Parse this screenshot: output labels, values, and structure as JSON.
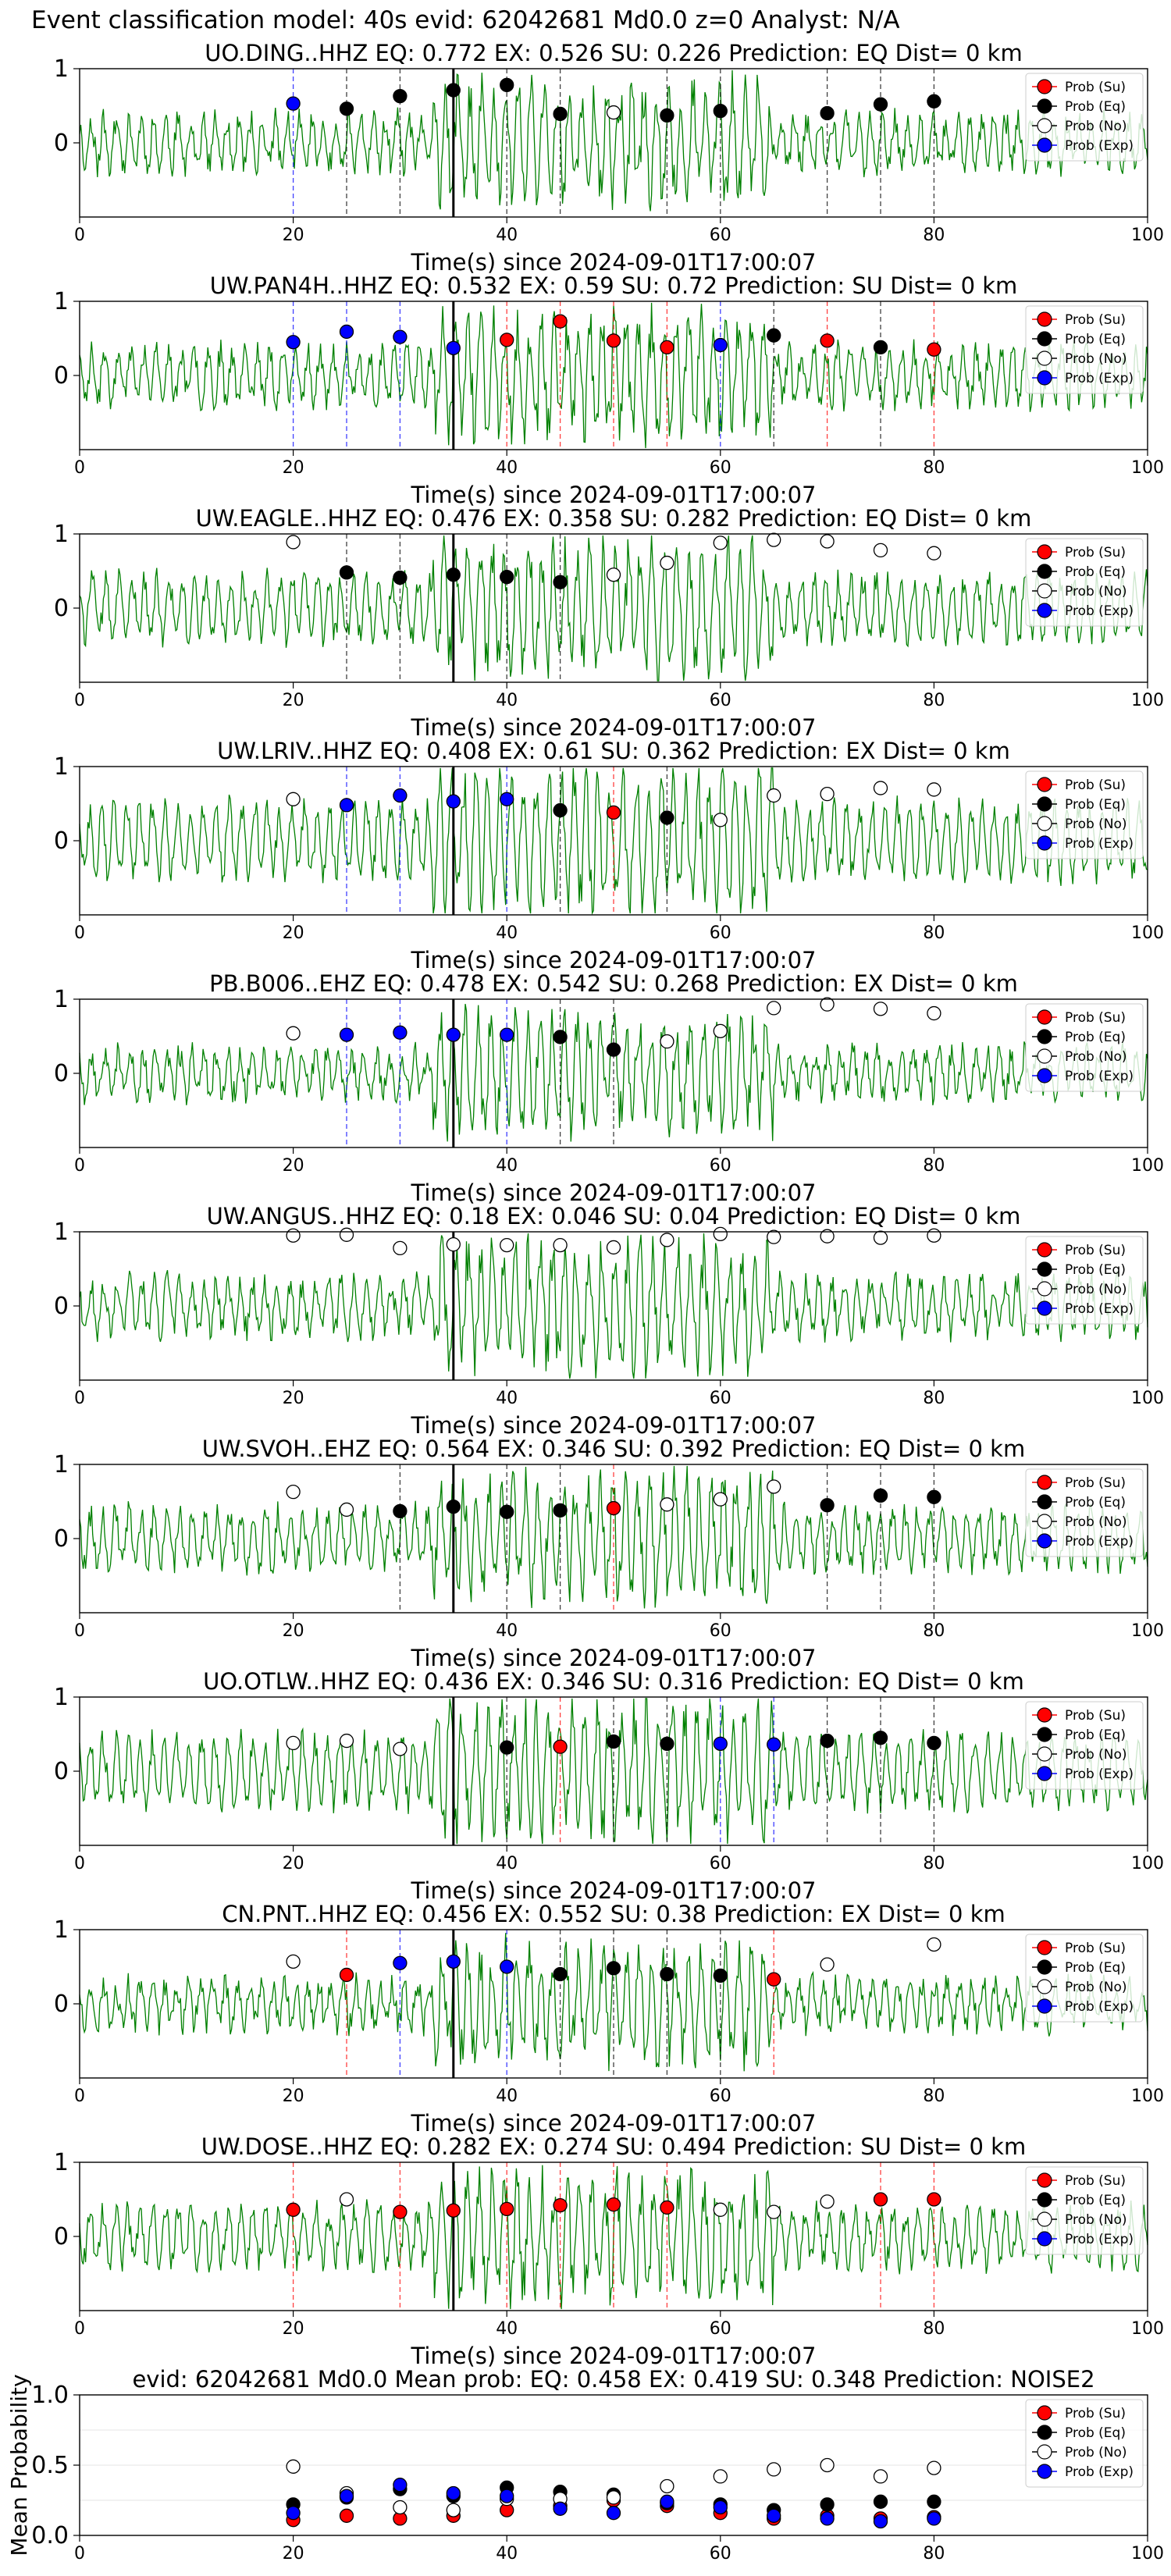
{
  "figure_title": "Event classification model: 40s evid: 62042681 Md0.0 z=0 Analyst: N/A",
  "legend_labels": [
    "Prob (Su)",
    "Prob (Eq)",
    "Prob (No)",
    "Prob (Exp)"
  ],
  "colors": {
    "su": "#ff0000",
    "eq": "#000000",
    "no": "#ffffff",
    "exp": "#0000ff",
    "waveform": "#008000"
  },
  "chart_data": [
    {
      "type": "scatter",
      "title": "UO.DING..HHZ   EQ: 0.772   EX: 0.526   SU: 0.226   Prediction: EQ    Dist= 0 km",
      "xlabel": "Time(s) since 2024-09-01T17:00:07",
      "ylabel": "",
      "xlim": [
        0,
        100
      ],
      "ylim": [
        -1,
        1
      ],
      "xticks": [
        0,
        20,
        40,
        60,
        80,
        100
      ],
      "yticks": [
        0,
        1
      ],
      "pick_time": 35,
      "waveform_seed": 11,
      "points": [
        {
          "x": 20,
          "y": 0.53,
          "cls": "exp"
        },
        {
          "x": 25,
          "y": 0.46,
          "cls": "eq"
        },
        {
          "x": 30,
          "y": 0.63,
          "cls": "eq"
        },
        {
          "x": 35,
          "y": 0.71,
          "cls": "eq"
        },
        {
          "x": 40,
          "y": 0.78,
          "cls": "eq"
        },
        {
          "x": 45,
          "y": 0.39,
          "cls": "eq"
        },
        {
          "x": 50,
          "y": 0.41,
          "cls": "no"
        },
        {
          "x": 55,
          "y": 0.37,
          "cls": "eq"
        },
        {
          "x": 60,
          "y": 0.43,
          "cls": "eq"
        },
        {
          "x": 70,
          "y": 0.4,
          "cls": "eq"
        },
        {
          "x": 75,
          "y": 0.52,
          "cls": "eq"
        },
        {
          "x": 80,
          "y": 0.56,
          "cls": "eq"
        }
      ]
    },
    {
      "type": "scatter",
      "title": "UW.PAN4H..HHZ   EQ: 0.532   EX: 0.59   SU: 0.72   Prediction: SU    Dist= 0 km",
      "xlabel": "Time(s) since 2024-09-01T17:00:07",
      "ylabel": "",
      "xlim": [
        0,
        100
      ],
      "ylim": [
        -1,
        1
      ],
      "xticks": [
        0,
        20,
        40,
        60,
        80,
        100
      ],
      "yticks": [
        0,
        1
      ],
      "pick_time": 35,
      "waveform_seed": 23,
      "points": [
        {
          "x": 20,
          "y": 0.45,
          "cls": "exp"
        },
        {
          "x": 25,
          "y": 0.59,
          "cls": "exp"
        },
        {
          "x": 30,
          "y": 0.52,
          "cls": "exp"
        },
        {
          "x": 35,
          "y": 0.37,
          "cls": "exp"
        },
        {
          "x": 40,
          "y": 0.48,
          "cls": "su"
        },
        {
          "x": 45,
          "y": 0.73,
          "cls": "su"
        },
        {
          "x": 50,
          "y": 0.47,
          "cls": "su"
        },
        {
          "x": 55,
          "y": 0.38,
          "cls": "su"
        },
        {
          "x": 60,
          "y": 0.41,
          "cls": "exp"
        },
        {
          "x": 65,
          "y": 0.54,
          "cls": "eq"
        },
        {
          "x": 70,
          "y": 0.47,
          "cls": "su"
        },
        {
          "x": 75,
          "y": 0.38,
          "cls": "eq"
        },
        {
          "x": 80,
          "y": 0.35,
          "cls": "su"
        }
      ]
    },
    {
      "type": "scatter",
      "title": "UW.EAGLE..HHZ   EQ: 0.476   EX: 0.358   SU: 0.282   Prediction: EQ    Dist= 0 km",
      "xlabel": "Time(s) since 2024-09-01T17:00:07",
      "ylabel": "",
      "xlim": [
        0,
        100
      ],
      "ylim": [
        -1,
        1
      ],
      "xticks": [
        0,
        20,
        40,
        60,
        80,
        100
      ],
      "yticks": [
        0,
        1
      ],
      "pick_time": 35,
      "waveform_seed": 37,
      "points": [
        {
          "x": 20,
          "y": 0.89,
          "cls": "no"
        },
        {
          "x": 25,
          "y": 0.48,
          "cls": "eq"
        },
        {
          "x": 30,
          "y": 0.41,
          "cls": "eq"
        },
        {
          "x": 35,
          "y": 0.45,
          "cls": "eq"
        },
        {
          "x": 40,
          "y": 0.42,
          "cls": "eq"
        },
        {
          "x": 45,
          "y": 0.35,
          "cls": "eq"
        },
        {
          "x": 50,
          "y": 0.45,
          "cls": "no"
        },
        {
          "x": 55,
          "y": 0.61,
          "cls": "no"
        },
        {
          "x": 60,
          "y": 0.88,
          "cls": "no"
        },
        {
          "x": 65,
          "y": 0.92,
          "cls": "no"
        },
        {
          "x": 70,
          "y": 0.9,
          "cls": "no"
        },
        {
          "x": 75,
          "y": 0.78,
          "cls": "no"
        },
        {
          "x": 80,
          "y": 0.74,
          "cls": "no"
        }
      ]
    },
    {
      "type": "scatter",
      "title": "UW.LRIV..HHZ   EQ: 0.408   EX: 0.61   SU: 0.362   Prediction: EX    Dist= 0 km",
      "xlabel": "Time(s) since 2024-09-01T17:00:07",
      "ylabel": "",
      "xlim": [
        0,
        100
      ],
      "ylim": [
        -1,
        1
      ],
      "xticks": [
        0,
        20,
        40,
        60,
        80,
        100
      ],
      "yticks": [
        0,
        1
      ],
      "pick_time": 35,
      "waveform_seed": 41,
      "points": [
        {
          "x": 20,
          "y": 0.56,
          "cls": "no"
        },
        {
          "x": 25,
          "y": 0.48,
          "cls": "exp"
        },
        {
          "x": 30,
          "y": 0.61,
          "cls": "exp"
        },
        {
          "x": 35,
          "y": 0.53,
          "cls": "exp"
        },
        {
          "x": 40,
          "y": 0.56,
          "cls": "exp"
        },
        {
          "x": 45,
          "y": 0.41,
          "cls": "eq"
        },
        {
          "x": 50,
          "y": 0.38,
          "cls": "su"
        },
        {
          "x": 55,
          "y": 0.31,
          "cls": "eq"
        },
        {
          "x": 60,
          "y": 0.28,
          "cls": "no"
        },
        {
          "x": 65,
          "y": 0.61,
          "cls": "no"
        },
        {
          "x": 70,
          "y": 0.63,
          "cls": "no"
        },
        {
          "x": 75,
          "y": 0.71,
          "cls": "no"
        },
        {
          "x": 80,
          "y": 0.69,
          "cls": "no"
        }
      ]
    },
    {
      "type": "scatter",
      "title": "PB.B006..EHZ   EQ: 0.478   EX: 0.542   SU: 0.268   Prediction: EX    Dist= 0 km",
      "xlabel": "Time(s) since 2024-09-01T17:00:07",
      "ylabel": "",
      "xlim": [
        0,
        100
      ],
      "ylim": [
        -1,
        1
      ],
      "xticks": [
        0,
        20,
        40,
        60,
        80,
        100
      ],
      "yticks": [
        0,
        1
      ],
      "pick_time": 35,
      "waveform_seed": 53,
      "points": [
        {
          "x": 20,
          "y": 0.54,
          "cls": "no"
        },
        {
          "x": 25,
          "y": 0.52,
          "cls": "exp"
        },
        {
          "x": 30,
          "y": 0.55,
          "cls": "exp"
        },
        {
          "x": 35,
          "y": 0.52,
          "cls": "exp"
        },
        {
          "x": 40,
          "y": 0.52,
          "cls": "exp"
        },
        {
          "x": 45,
          "y": 0.49,
          "cls": "eq"
        },
        {
          "x": 50,
          "y": 0.32,
          "cls": "eq"
        },
        {
          "x": 55,
          "y": 0.43,
          "cls": "no"
        },
        {
          "x": 60,
          "y": 0.57,
          "cls": "no"
        },
        {
          "x": 65,
          "y": 0.88,
          "cls": "no"
        },
        {
          "x": 70,
          "y": 0.93,
          "cls": "no"
        },
        {
          "x": 75,
          "y": 0.87,
          "cls": "no"
        },
        {
          "x": 80,
          "y": 0.81,
          "cls": "no"
        }
      ]
    },
    {
      "type": "scatter",
      "title": "UW.ANGUS..HHZ   EQ: 0.18   EX: 0.046   SU: 0.04   Prediction: EQ    Dist= 0 km",
      "xlabel": "Time(s) since 2024-09-01T17:00:07",
      "ylabel": "",
      "xlim": [
        0,
        100
      ],
      "ylim": [
        -1,
        1
      ],
      "xticks": [
        0,
        20,
        40,
        60,
        80,
        100
      ],
      "yticks": [
        0,
        1
      ],
      "pick_time": 35,
      "waveform_seed": 67,
      "points": [
        {
          "x": 20,
          "y": 0.95,
          "cls": "no"
        },
        {
          "x": 25,
          "y": 0.96,
          "cls": "no"
        },
        {
          "x": 30,
          "y": 0.78,
          "cls": "no"
        },
        {
          "x": 35,
          "y": 0.83,
          "cls": "no"
        },
        {
          "x": 40,
          "y": 0.82,
          "cls": "no"
        },
        {
          "x": 45,
          "y": 0.82,
          "cls": "no"
        },
        {
          "x": 50,
          "y": 0.79,
          "cls": "no"
        },
        {
          "x": 55,
          "y": 0.89,
          "cls": "no"
        },
        {
          "x": 60,
          "y": 0.97,
          "cls": "no"
        },
        {
          "x": 65,
          "y": 0.93,
          "cls": "no"
        },
        {
          "x": 70,
          "y": 0.94,
          "cls": "no"
        },
        {
          "x": 75,
          "y": 0.92,
          "cls": "no"
        },
        {
          "x": 80,
          "y": 0.95,
          "cls": "no"
        }
      ]
    },
    {
      "type": "scatter",
      "title": "UW.SVOH..EHZ   EQ: 0.564   EX: 0.346   SU: 0.392   Prediction: EQ    Dist= 0 km",
      "xlabel": "Time(s) since 2024-09-01T17:00:07",
      "ylabel": "",
      "xlim": [
        0,
        100
      ],
      "ylim": [
        -1,
        1
      ],
      "xticks": [
        0,
        20,
        40,
        60,
        80,
        100
      ],
      "yticks": [
        0,
        1
      ],
      "pick_time": 35,
      "waveform_seed": 79,
      "points": [
        {
          "x": 20,
          "y": 0.63,
          "cls": "no"
        },
        {
          "x": 25,
          "y": 0.39,
          "cls": "no"
        },
        {
          "x": 30,
          "y": 0.37,
          "cls": "eq"
        },
        {
          "x": 35,
          "y": 0.43,
          "cls": "eq"
        },
        {
          "x": 40,
          "y": 0.36,
          "cls": "eq"
        },
        {
          "x": 45,
          "y": 0.38,
          "cls": "eq"
        },
        {
          "x": 50,
          "y": 0.41,
          "cls": "su"
        },
        {
          "x": 55,
          "y": 0.46,
          "cls": "no"
        },
        {
          "x": 60,
          "y": 0.53,
          "cls": "no"
        },
        {
          "x": 65,
          "y": 0.7,
          "cls": "no"
        },
        {
          "x": 70,
          "y": 0.45,
          "cls": "eq"
        },
        {
          "x": 75,
          "y": 0.58,
          "cls": "eq"
        },
        {
          "x": 80,
          "y": 0.56,
          "cls": "eq"
        }
      ]
    },
    {
      "type": "scatter",
      "title": "UO.OTLW..HHZ   EQ: 0.436   EX: 0.346   SU: 0.316   Prediction: EQ    Dist= 0 km",
      "xlabel": "Time(s) since 2024-09-01T17:00:07",
      "ylabel": "",
      "xlim": [
        0,
        100
      ],
      "ylim": [
        -1,
        1
      ],
      "xticks": [
        0,
        20,
        40,
        60,
        80,
        100
      ],
      "yticks": [
        0,
        1
      ],
      "pick_time": 35,
      "waveform_seed": 83,
      "points": [
        {
          "x": 20,
          "y": 0.38,
          "cls": "no"
        },
        {
          "x": 25,
          "y": 0.41,
          "cls": "no"
        },
        {
          "x": 30,
          "y": 0.3,
          "cls": "no"
        },
        {
          "x": 40,
          "y": 0.32,
          "cls": "eq"
        },
        {
          "x": 45,
          "y": 0.33,
          "cls": "su"
        },
        {
          "x": 50,
          "y": 0.4,
          "cls": "eq"
        },
        {
          "x": 55,
          "y": 0.37,
          "cls": "eq"
        },
        {
          "x": 60,
          "y": 0.37,
          "cls": "exp"
        },
        {
          "x": 65,
          "y": 0.36,
          "cls": "exp"
        },
        {
          "x": 70,
          "y": 0.41,
          "cls": "eq"
        },
        {
          "x": 75,
          "y": 0.45,
          "cls": "eq"
        },
        {
          "x": 80,
          "y": 0.38,
          "cls": "eq"
        }
      ]
    },
    {
      "type": "scatter",
      "title": "CN.PNT..HHZ   EQ: 0.456   EX: 0.552   SU: 0.38   Prediction: EX    Dist= 0 km",
      "xlabel": "Time(s) since 2024-09-01T17:00:07",
      "ylabel": "",
      "xlim": [
        0,
        100
      ],
      "ylim": [
        -1,
        1
      ],
      "xticks": [
        0,
        20,
        40,
        60,
        80,
        100
      ],
      "yticks": [
        0,
        1
      ],
      "pick_time": 35,
      "waveform_seed": 97,
      "points": [
        {
          "x": 20,
          "y": 0.57,
          "cls": "no"
        },
        {
          "x": 25,
          "y": 0.39,
          "cls": "su"
        },
        {
          "x": 30,
          "y": 0.55,
          "cls": "exp"
        },
        {
          "x": 35,
          "y": 0.57,
          "cls": "exp"
        },
        {
          "x": 40,
          "y": 0.5,
          "cls": "exp"
        },
        {
          "x": 45,
          "y": 0.4,
          "cls": "eq"
        },
        {
          "x": 50,
          "y": 0.48,
          "cls": "eq"
        },
        {
          "x": 55,
          "y": 0.4,
          "cls": "eq"
        },
        {
          "x": 60,
          "y": 0.38,
          "cls": "eq"
        },
        {
          "x": 65,
          "y": 0.33,
          "cls": "su"
        },
        {
          "x": 70,
          "y": 0.53,
          "cls": "no"
        },
        {
          "x": 80,
          "y": 0.8,
          "cls": "no"
        }
      ]
    },
    {
      "type": "scatter",
      "title": "UW.DOSE..HHZ   EQ: 0.282   EX: 0.274   SU: 0.494   Prediction: SU    Dist= 0 km",
      "xlabel": "Time(s) since 2024-09-01T17:00:07",
      "ylabel": "",
      "xlim": [
        0,
        100
      ],
      "ylim": [
        -1,
        1
      ],
      "xticks": [
        0,
        20,
        40,
        60,
        80,
        100
      ],
      "yticks": [
        0,
        1
      ],
      "pick_time": 35,
      "waveform_seed": 101,
      "points": [
        {
          "x": 20,
          "y": 0.36,
          "cls": "su"
        },
        {
          "x": 25,
          "y": 0.5,
          "cls": "no"
        },
        {
          "x": 30,
          "y": 0.33,
          "cls": "su"
        },
        {
          "x": 35,
          "y": 0.35,
          "cls": "su"
        },
        {
          "x": 40,
          "y": 0.37,
          "cls": "su"
        },
        {
          "x": 45,
          "y": 0.42,
          "cls": "su"
        },
        {
          "x": 50,
          "y": 0.43,
          "cls": "su"
        },
        {
          "x": 55,
          "y": 0.39,
          "cls": "su"
        },
        {
          "x": 60,
          "y": 0.36,
          "cls": "no"
        },
        {
          "x": 65,
          "y": 0.33,
          "cls": "no"
        },
        {
          "x": 70,
          "y": 0.47,
          "cls": "no"
        },
        {
          "x": 75,
          "y": 0.5,
          "cls": "su"
        },
        {
          "x": 80,
          "y": 0.5,
          "cls": "su"
        }
      ]
    },
    {
      "type": "scatter",
      "title": "evid: 62042681  Md0.0   Mean prob:   EQ: 0.458  EX: 0.419  SU: 0.348   Prediction: NOISE2",
      "xlabel": "",
      "ylabel": "Mean Probability",
      "xlim": [
        0,
        100
      ],
      "ylim": [
        0,
        1
      ],
      "xticks": [
        0,
        20,
        40,
        60,
        80,
        100
      ],
      "yticks": [
        0.0,
        0.5,
        1.0
      ],
      "ytick_labels": [
        "0.0",
        "0.5",
        "1.0"
      ],
      "series": [
        {
          "name": "Prob (Su)",
          "cls": "su",
          "x": [
            20,
            25,
            30,
            35,
            40,
            45,
            50,
            55,
            60,
            65,
            70,
            75,
            80
          ],
          "values": [
            0.11,
            0.14,
            0.12,
            0.14,
            0.18,
            0.21,
            0.25,
            0.21,
            0.16,
            0.12,
            0.14,
            0.12,
            0.13
          ]
        },
        {
          "name": "Prob (Eq)",
          "cls": "eq",
          "x": [
            20,
            25,
            30,
            35,
            40,
            45,
            50,
            55,
            60,
            65,
            70,
            75,
            80
          ],
          "values": [
            0.22,
            0.27,
            0.33,
            0.28,
            0.34,
            0.31,
            0.29,
            0.23,
            0.22,
            0.18,
            0.22,
            0.24,
            0.24
          ]
        },
        {
          "name": "Prob (No)",
          "cls": "no",
          "x": [
            20,
            25,
            30,
            35,
            40,
            45,
            50,
            55,
            60,
            65,
            70,
            75,
            80
          ],
          "values": [
            0.49,
            0.3,
            0.2,
            0.18,
            0.26,
            0.26,
            0.27,
            0.35,
            0.42,
            0.47,
            0.5,
            0.42,
            0.48
          ]
        },
        {
          "name": "Prob (Exp)",
          "cls": "exp",
          "x": [
            20,
            25,
            30,
            35,
            40,
            45,
            50,
            55,
            60,
            65,
            70,
            75,
            80
          ],
          "values": [
            0.16,
            0.28,
            0.36,
            0.3,
            0.28,
            0.19,
            0.16,
            0.24,
            0.2,
            0.14,
            0.12,
            0.1,
            0.12
          ]
        }
      ]
    }
  ]
}
